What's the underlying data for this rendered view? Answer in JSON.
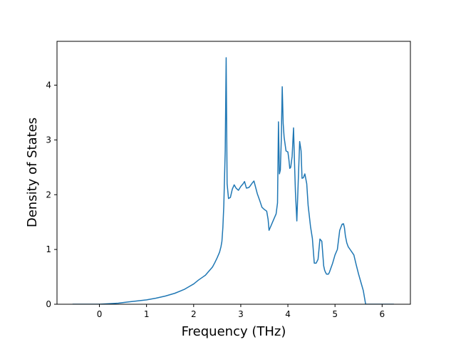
{
  "chart_data": {
    "type": "line",
    "title": "",
    "xlabel": "Frequency (THz)",
    "ylabel": "Density of States",
    "xlim": [
      -0.9,
      6.6
    ],
    "ylim": [
      0,
      4.8
    ],
    "xticks": [
      0,
      1,
      2,
      3,
      4,
      5,
      6
    ],
    "xtick_labels": [
      "0",
      "1",
      "2",
      "3",
      "4",
      "5",
      "6"
    ],
    "yticks": [
      0,
      1,
      2,
      3,
      4
    ],
    "ytick_labels": [
      "0",
      "1",
      "2",
      "3",
      "4"
    ],
    "grid": false,
    "legend": "none",
    "series": [
      {
        "color": "#1f77b4",
        "x": [
          -0.57,
          -0.2,
          0.0,
          0.2,
          0.4,
          0.6,
          0.8,
          1.0,
          1.2,
          1.4,
          1.6,
          1.8,
          1.9,
          2.0,
          2.1,
          2.2,
          2.25,
          2.3,
          2.4,
          2.45,
          2.5,
          2.55,
          2.58,
          2.6,
          2.62,
          2.64,
          2.67,
          2.69,
          2.71,
          2.74,
          2.78,
          2.82,
          2.86,
          2.9,
          2.95,
          3.0,
          3.05,
          3.08,
          3.12,
          3.17,
          3.2,
          3.25,
          3.28,
          3.35,
          3.4,
          3.45,
          3.5,
          3.55,
          3.58,
          3.6,
          3.65,
          3.7,
          3.75,
          3.78,
          3.8,
          3.82,
          3.84,
          3.86,
          3.88,
          3.9,
          3.92,
          3.96,
          4.0,
          4.02,
          4.04,
          4.06,
          4.09,
          4.12,
          4.14,
          4.16,
          4.19,
          4.22,
          4.25,
          4.28,
          4.3,
          4.33,
          4.36,
          4.4,
          4.43,
          4.45,
          4.48,
          4.52,
          4.56,
          4.6,
          4.64,
          4.68,
          4.72,
          4.76,
          4.78,
          4.8,
          4.82,
          4.84,
          4.86,
          4.88,
          4.9,
          4.95,
          5.0,
          5.05,
          5.1,
          5.15,
          5.18,
          5.2,
          5.22,
          5.25,
          5.28,
          5.32,
          5.36,
          5.4,
          5.45,
          5.5,
          5.55,
          5.6,
          5.65,
          5.7,
          5.75,
          5.85,
          6.0,
          6.25
        ],
        "y": [
          0.0,
          0.0,
          0.0,
          0.01,
          0.02,
          0.04,
          0.06,
          0.08,
          0.11,
          0.15,
          0.2,
          0.27,
          0.32,
          0.37,
          0.44,
          0.5,
          0.53,
          0.58,
          0.68,
          0.76,
          0.85,
          0.95,
          1.05,
          1.15,
          1.4,
          1.8,
          2.8,
          4.5,
          2.2,
          1.93,
          1.95,
          2.1,
          2.18,
          2.12,
          2.08,
          2.15,
          2.2,
          2.24,
          2.12,
          2.13,
          2.16,
          2.22,
          2.25,
          2.02,
          1.9,
          1.77,
          1.73,
          1.7,
          1.55,
          1.35,
          1.45,
          1.55,
          1.65,
          1.85,
          3.33,
          2.38,
          2.45,
          3.0,
          3.97,
          3.3,
          3.05,
          2.8,
          2.78,
          2.65,
          2.48,
          2.5,
          2.7,
          3.22,
          2.6,
          2.05,
          1.52,
          2.25,
          2.97,
          2.8,
          2.3,
          2.31,
          2.38,
          2.2,
          1.8,
          1.65,
          1.42,
          1.2,
          0.75,
          0.75,
          0.82,
          1.19,
          1.15,
          0.7,
          0.62,
          0.58,
          0.55,
          0.55,
          0.55,
          0.58,
          0.63,
          0.75,
          0.9,
          1.0,
          1.35,
          1.46,
          1.47,
          1.4,
          1.25,
          1.12,
          1.05,
          1.0,
          0.95,
          0.9,
          0.72,
          0.55,
          0.4,
          0.25,
          0.0,
          0.0,
          0.0,
          0.0,
          0.0,
          0.0
        ]
      }
    ]
  }
}
